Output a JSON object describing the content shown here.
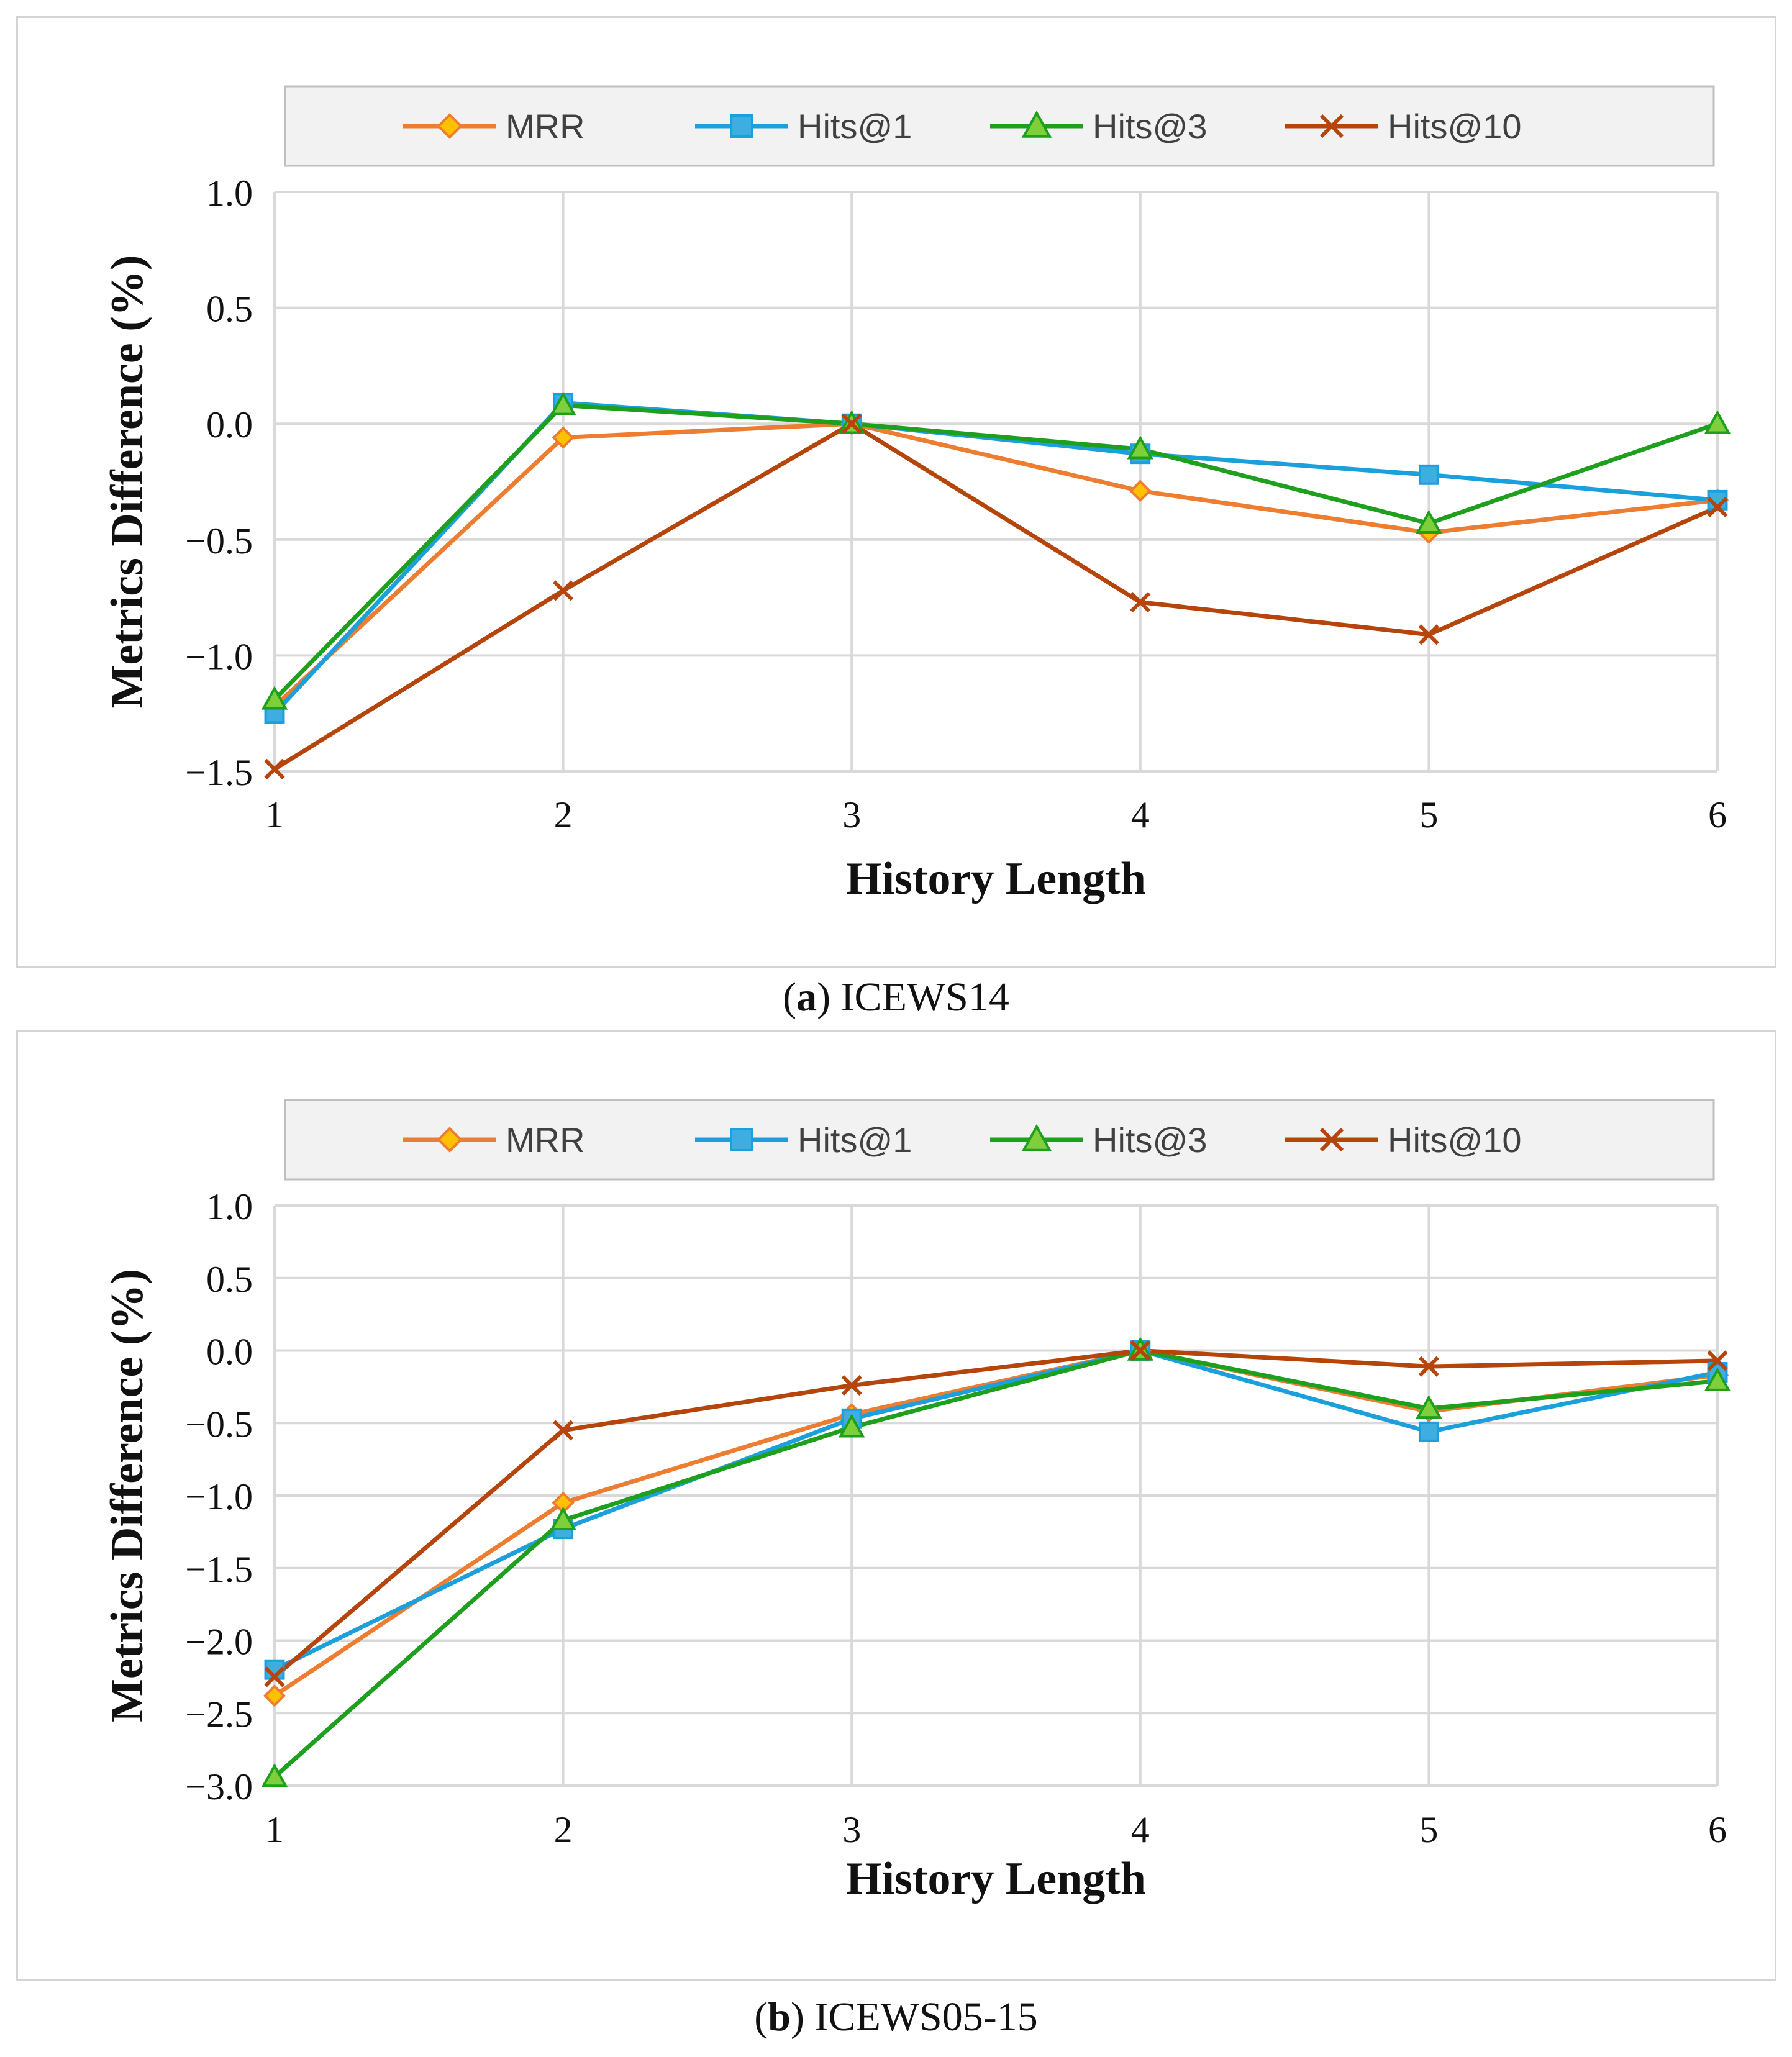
{
  "chart_data": [
    {
      "type": "line",
      "caption_label": "a",
      "caption_text": "ICEWS14",
      "xlabel": "History Length",
      "ylabel": "Metrics  Difference (%)",
      "categories": [
        "1",
        "2",
        "3",
        "4",
        "5",
        "6"
      ],
      "ylim": [
        -1.5,
        1.0
      ],
      "yticks": [
        1.0,
        0.5,
        0.0,
        -0.5,
        -1.0,
        -1.5
      ],
      "ytick_labels": [
        "1.0",
        "0.5",
        "0.0",
        "−0.5",
        "−1.0",
        "−1.5"
      ],
      "grid": true,
      "legend_position": "top",
      "series": [
        {
          "name": "MRR",
          "color": "#ED7D31",
          "marker": "diamond",
          "values": [
            -1.22,
            -0.06,
            0.0,
            -0.29,
            -0.47,
            -0.33
          ]
        },
        {
          "name": "Hits@1",
          "color": "#1CA0DC",
          "marker": "square",
          "values": [
            -1.25,
            0.09,
            0.0,
            -0.13,
            -0.22,
            -0.33
          ]
        },
        {
          "name": "Hits@3",
          "color": "#1EA01E",
          "marker": "triangle",
          "values": [
            -1.19,
            0.08,
            0.0,
            -0.11,
            -0.43,
            0.0
          ]
        },
        {
          "name": "Hits@10",
          "color": "#B5450B",
          "marker": "x",
          "values": [
            -1.49,
            -0.72,
            0.0,
            -0.77,
            -0.91,
            -0.36
          ]
        }
      ]
    },
    {
      "type": "line",
      "caption_label": "b",
      "caption_text": "ICEWS05-15",
      "xlabel": "History Length",
      "ylabel": "Metrics  Difference (%)",
      "categories": [
        "1",
        "2",
        "3",
        "4",
        "5",
        "6"
      ],
      "ylim": [
        -3.0,
        1.0
      ],
      "yticks": [
        1.0,
        0.5,
        0.0,
        -0.5,
        -1.0,
        -1.5,
        -2.0,
        -2.5,
        -3.0
      ],
      "ytick_labels": [
        "1.0",
        "0.5",
        "0.0",
        "−0.5",
        "−1.0",
        "−1.5",
        "−2.0",
        "−2.5",
        "−3.0"
      ],
      "grid": true,
      "legend_position": "top",
      "series": [
        {
          "name": "MRR",
          "color": "#ED7D31",
          "marker": "diamond",
          "values": [
            -2.38,
            -1.05,
            -0.44,
            0.0,
            -0.42,
            -0.17
          ]
        },
        {
          "name": "Hits@1",
          "color": "#1CA0DC",
          "marker": "square",
          "values": [
            -2.2,
            -1.23,
            -0.47,
            0.0,
            -0.56,
            -0.15
          ]
        },
        {
          "name": "Hits@3",
          "color": "#1EA01E",
          "marker": "triangle",
          "values": [
            -2.94,
            -1.17,
            -0.53,
            0.0,
            -0.4,
            -0.21
          ]
        },
        {
          "name": "Hits@10",
          "color": "#B5450B",
          "marker": "x",
          "values": [
            -2.25,
            -0.55,
            -0.24,
            0.0,
            -0.11,
            -0.07
          ]
        }
      ]
    }
  ]
}
